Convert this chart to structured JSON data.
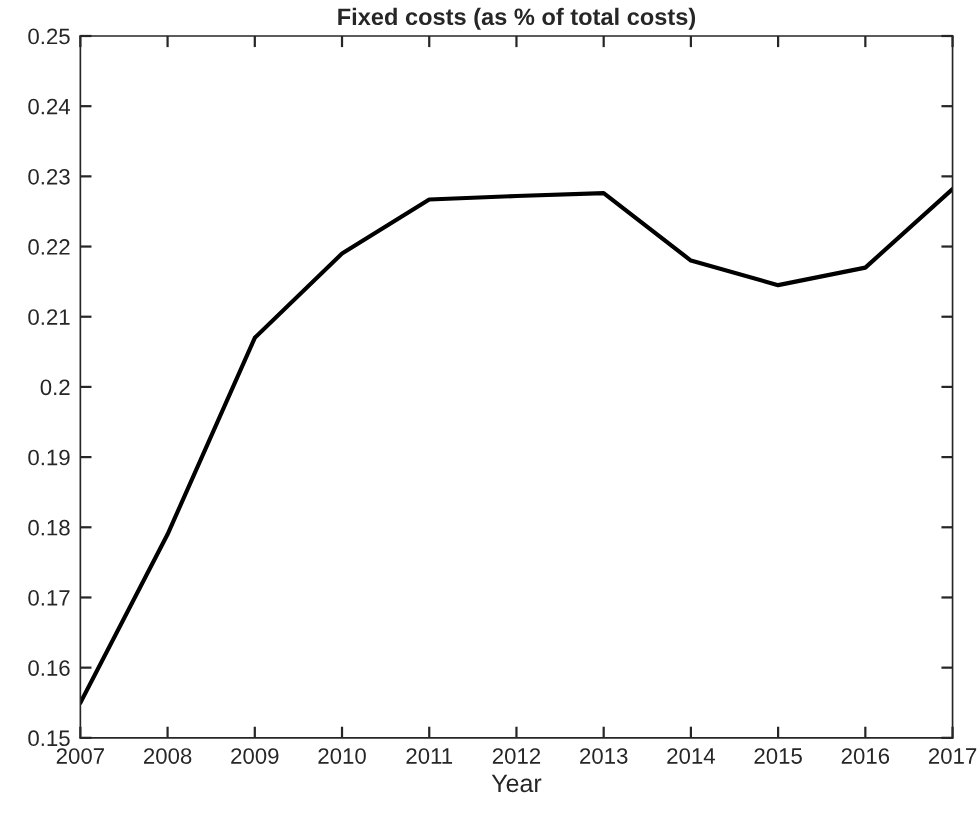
{
  "chart_data": {
    "type": "line",
    "title": "Fixed costs (as % of total costs)",
    "xlabel": "Year",
    "x": [
      2007,
      2008,
      2009,
      2010,
      2011,
      2012,
      2013,
      2014,
      2015,
      2016,
      2017
    ],
    "series": [
      {
        "color": "#000000",
        "values": [
          0.155,
          0.179,
          0.207,
          0.219,
          0.2267,
          0.2272,
          0.2276,
          0.218,
          0.2145,
          0.217,
          0.2282
        ]
      }
    ],
    "xlim": [
      2007,
      2017
    ],
    "xticks": [
      2007,
      2008,
      2009,
      2010,
      2011,
      2012,
      2013,
      2014,
      2015,
      2016,
      2017
    ],
    "ylim": [
      0.15,
      0.25
    ],
    "yticks": [
      0.15,
      0.16,
      0.17,
      0.18,
      0.19,
      0.2,
      0.21,
      0.22,
      0.23,
      0.24,
      0.25
    ],
    "grid": false,
    "marker": "none",
    "line_style": "solid"
  }
}
